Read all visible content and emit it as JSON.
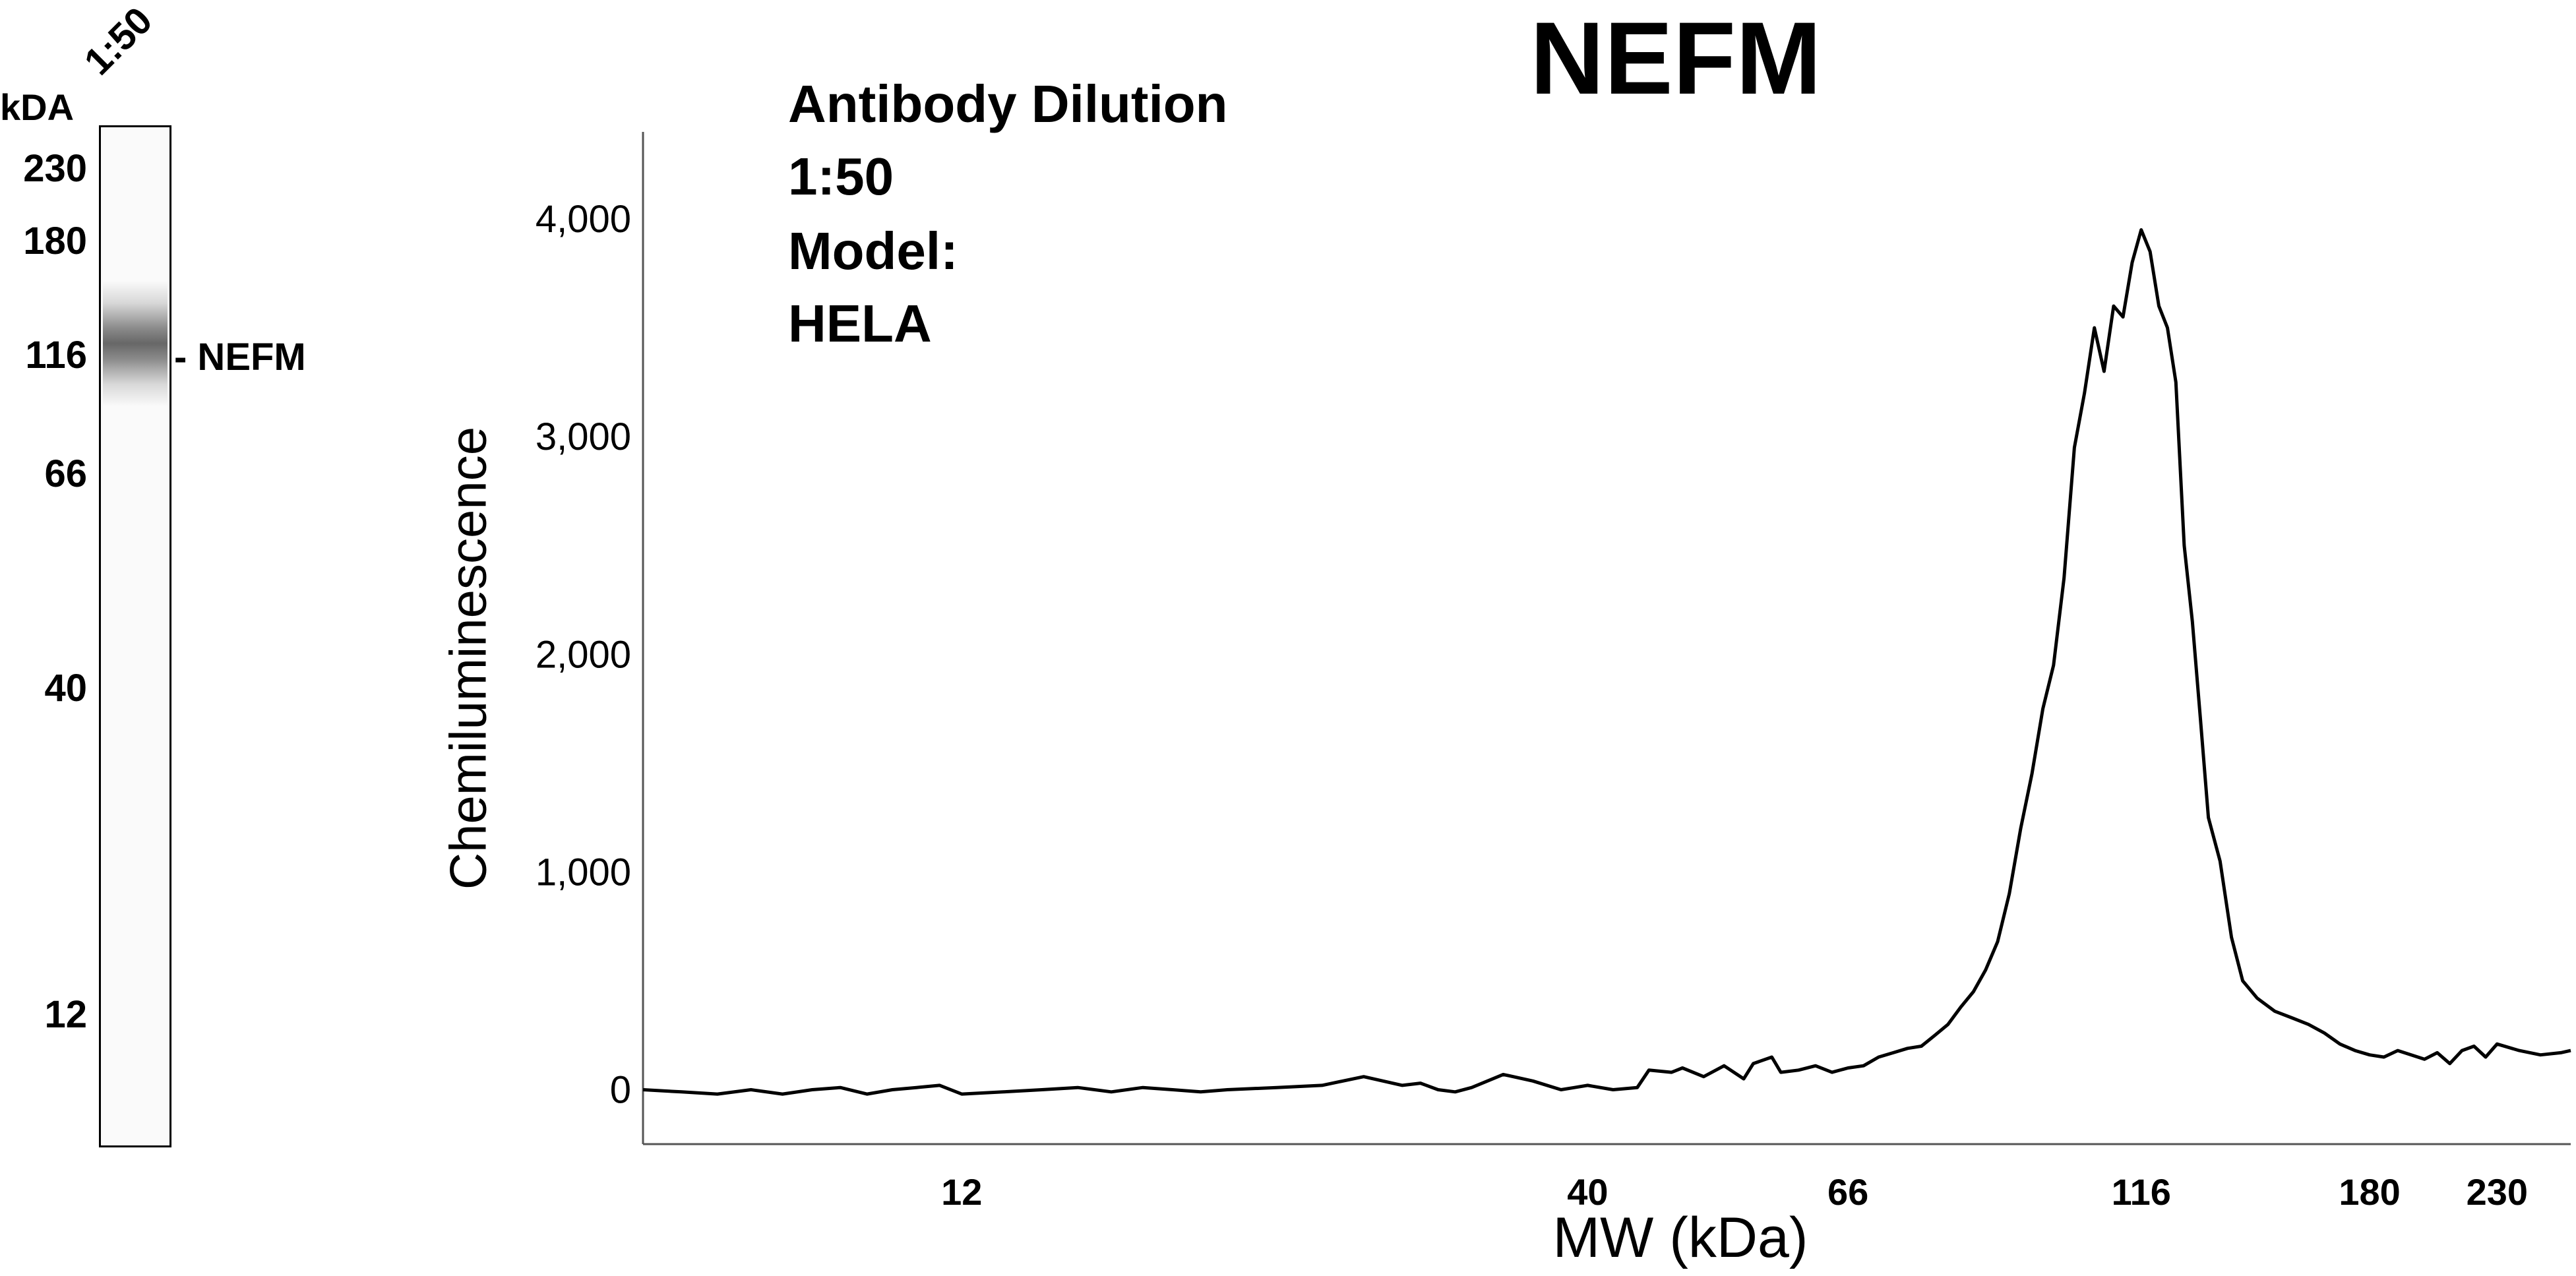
{
  "lane_panel": {
    "unit_header": "kDA",
    "lane_label": "1:50",
    "markers": [
      "230",
      "180",
      "116",
      "66",
      "40",
      "12"
    ],
    "band_label": "- NEFM"
  },
  "annotations": {
    "line1": "Antibody Dilution",
    "line2": "1:50",
    "line3": "Model:",
    "line4": "HELA"
  },
  "chart_data": {
    "type": "line",
    "title": "NEFM",
    "xlabel": "MW (kDa)",
    "ylabel": "Chemiluminescence",
    "x_scale": "log",
    "x_ticks": [
      12,
      40,
      66,
      116,
      180,
      230
    ],
    "y_ticks": [
      0,
      1000,
      2000,
      3000,
      4000
    ],
    "y_tick_labels": [
      "0",
      "1,000",
      "2,000",
      "3,000",
      "4,000"
    ],
    "xlim": [
      6.5,
      265
    ],
    "ylim": [
      -250,
      4400
    ],
    "grid": false,
    "series": [
      {
        "x": [
          6.5,
          7,
          7.5,
          8,
          8.5,
          9,
          9.5,
          10,
          10.5,
          11,
          11.5,
          12,
          13,
          14,
          15,
          16,
          17,
          18,
          19,
          20,
          22,
          24,
          26,
          28,
          29,
          30,
          31,
          32,
          34,
          36,
          38,
          39,
          40,
          42,
          44,
          45,
          47,
          48,
          50,
          52,
          54,
          55,
          57,
          58,
          60,
          62,
          64,
          66,
          68,
          70,
          72,
          74,
          76,
          78,
          80,
          82,
          84,
          86,
          88,
          90,
          92,
          94,
          96,
          98,
          100,
          102,
          104,
          106,
          108,
          110,
          112,
          114,
          116,
          118,
          120,
          122,
          124,
          126,
          128,
          130,
          132,
          135,
          138,
          141,
          145,
          150,
          155,
          160,
          165,
          170,
          175,
          180,
          185,
          190,
          195,
          200,
          205,
          210,
          215,
          220,
          225,
          230,
          240,
          250,
          260,
          265
        ],
        "y": [
          0,
          -10,
          -20,
          0,
          -20,
          0,
          10,
          -20,
          0,
          10,
          20,
          -20,
          -10,
          0,
          10,
          -10,
          10,
          0,
          -10,
          0,
          10,
          20,
          60,
          20,
          30,
          0,
          -10,
          10,
          70,
          40,
          0,
          10,
          20,
          0,
          10,
          90,
          80,
          100,
          60,
          110,
          50,
          120,
          150,
          80,
          90,
          110,
          80,
          100,
          110,
          150,
          170,
          190,
          200,
          250,
          300,
          380,
          450,
          550,
          680,
          900,
          1200,
          1450,
          1750,
          1950,
          2350,
          2950,
          3200,
          3500,
          3300,
          3600,
          3550,
          3800,
          3950,
          3850,
          3600,
          3500,
          3250,
          2500,
          2150,
          1700,
          1250,
          1050,
          700,
          500,
          420,
          360,
          330,
          300,
          260,
          210,
          180,
          160,
          150,
          180,
          160,
          140,
          170,
          120,
          180,
          200,
          150,
          210,
          180,
          160,
          170,
          180
        ]
      }
    ]
  }
}
